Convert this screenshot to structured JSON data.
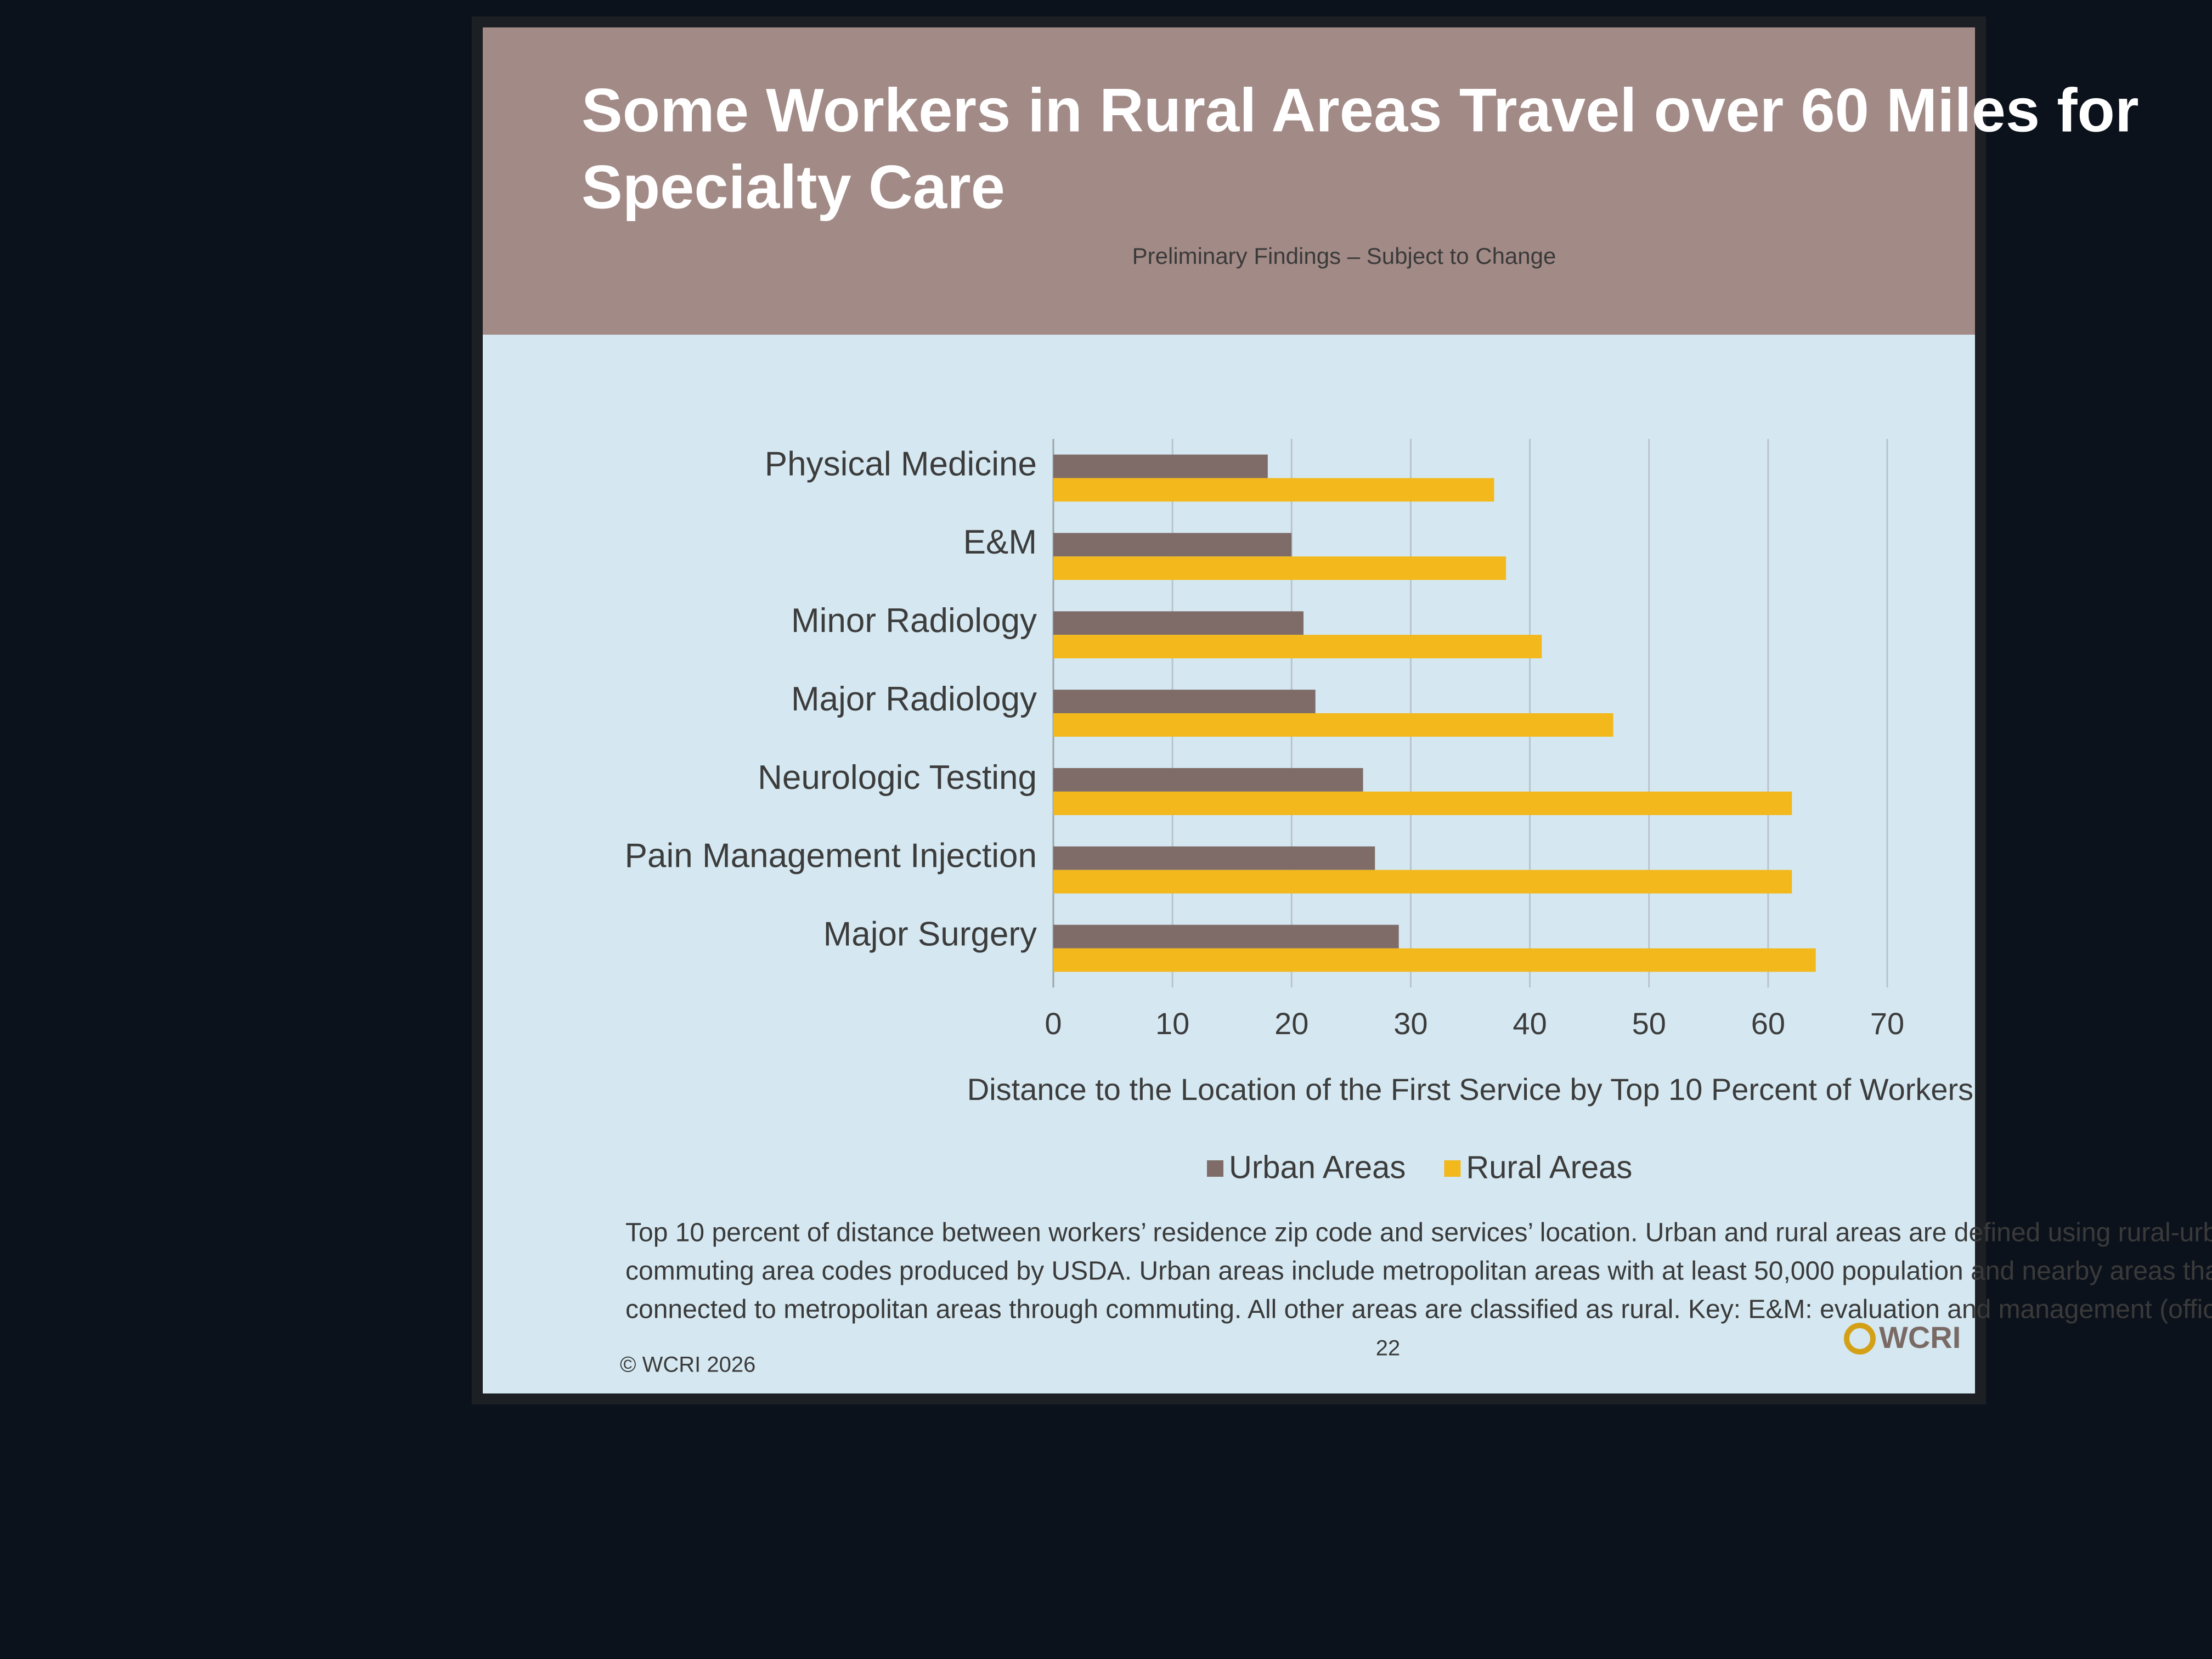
{
  "chart_data": {
    "type": "hbar",
    "title": [
      "Some Workers in Rural Areas Travel over 60 Miles for",
      "Specialty Care"
    ],
    "subtitle": "Preliminary Findings – Subject to Change",
    "categories": [
      "Physical Medicine",
      "E&M",
      "Minor Radiology",
      "Major Radiology",
      "Neurologic Testing",
      "Pain Management Injection",
      "Major Surgery"
    ],
    "series": [
      {
        "name": "Urban Areas",
        "color": "#7f6c69",
        "values": [
          18,
          20,
          21,
          22,
          26,
          27,
          29
        ]
      },
      {
        "name": "Rural Areas",
        "color": "#f2b81c",
        "values": [
          37,
          38,
          41,
          47,
          62,
          62,
          64
        ]
      }
    ],
    "xlim": [
      0,
      70
    ],
    "xticks": [
      0,
      10,
      20,
      30,
      40,
      50,
      60,
      70
    ],
    "grid": true,
    "x_label": "Distance to the Location of the First Service by Top 10 Percent of Workers",
    "legend": "bottom"
  },
  "slide": {
    "footnote": [
      "Top 10 percent of distance between workers’ residence zip code and services’ location. Urban and rural areas are defined using rural-urban",
      "commuting area codes produced by USDA. Urban areas include metropolitan areas with at least 50,000 population and nearby areas that are",
      "connected to metropolitan areas through commuting. All other areas are classified as rural. Key: E&M: evaluation and management (office visits)."
    ],
    "copyright": "© WCRI 2026",
    "page_number": "22",
    "logo": "WCRI"
  }
}
